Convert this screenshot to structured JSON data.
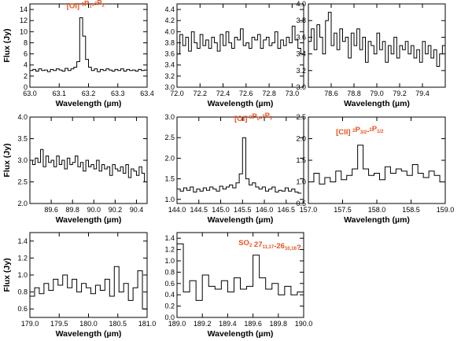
{
  "figure": {
    "common_xlabel": "Wavelength (µm)",
    "common_ylabel": "Flux (Jy)"
  },
  "chart_data": [
    {
      "type": "line",
      "step": true,
      "xlim": [
        63.0,
        63.4
      ],
      "ylim": [
        0,
        15
      ],
      "xticks": [
        63.0,
        63.1,
        63.2,
        63.3,
        63.4
      ],
      "xtick_labels": [
        "63.0",
        "63.1",
        "63.2",
        "63.3",
        "63.4"
      ],
      "yticks": [
        0,
        2,
        4,
        6,
        8,
        10,
        12,
        14
      ],
      "ytick_labels": [
        "0",
        "2",
        "4",
        "6",
        "8",
        "10",
        "12",
        "14"
      ],
      "xlabel": "Wavelength (µm)",
      "ylabel": "Flux (Jy)",
      "annotation": {
        "main": "[OI] ",
        "parts": [
          [
            "3",
            "sup"
          ],
          [
            "P",
            ""
          ],
          [
            "1",
            "sub"
          ],
          [
            "-",
            ""
          ],
          [
            "3",
            "sup"
          ],
          [
            "P",
            ""
          ],
          [
            "2",
            "sub"
          ]
        ],
        "anchor": "x",
        "x": 63.19,
        "y": 14.2
      },
      "x": [
        63.0,
        63.01,
        63.02,
        63.03,
        63.04,
        63.05,
        63.06,
        63.07,
        63.08,
        63.09,
        63.1,
        63.11,
        63.12,
        63.13,
        63.14,
        63.15,
        63.16,
        63.17,
        63.18,
        63.19,
        63.2,
        63.21,
        63.22,
        63.23,
        63.24,
        63.25,
        63.26,
        63.27,
        63.28,
        63.29,
        63.3,
        63.31,
        63.32,
        63.33,
        63.34,
        63.35,
        63.36,
        63.37,
        63.38,
        63.39,
        63.4
      ],
      "y": [
        3.0,
        3.2,
        2.9,
        3.3,
        3.0,
        3.1,
        2.8,
        3.2,
        3.0,
        3.3,
        3.1,
        2.9,
        3.4,
        3.0,
        3.3,
        3.6,
        4.6,
        12.5,
        9.2,
        5.0,
        3.6,
        3.0,
        3.3,
        2.8,
        3.2,
        3.0,
        3.3,
        3.1,
        2.9,
        3.2,
        3.0,
        3.3,
        2.9,
        3.2,
        3.0,
        3.1,
        2.9,
        3.2,
        3.0,
        3.1,
        3.0
      ]
    },
    {
      "type": "line",
      "step": true,
      "xlim": [
        72.0,
        73.1
      ],
      "ylim": [
        3.0,
        4.5
      ],
      "xticks": [
        72.0,
        72.2,
        72.4,
        72.6,
        72.8,
        73.0
      ],
      "xtick_labels": [
        "72.0",
        "72.2",
        "72.4",
        "72.6",
        "72.8",
        "73.0"
      ],
      "yticks": [
        3.0,
        3.2,
        3.4,
        3.6,
        3.8,
        4.0,
        4.2,
        4.4
      ],
      "ytick_labels": [
        "3.0",
        "3.2",
        "3.4",
        "3.6",
        "3.8",
        "4.0",
        "4.2",
        "4.4"
      ],
      "xlabel": "Wavelength (µm)",
      "ylabel": "",
      "x": [
        72.0,
        72.025,
        72.05,
        72.075,
        72.1,
        72.125,
        72.15,
        72.175,
        72.2,
        72.225,
        72.25,
        72.275,
        72.3,
        72.325,
        72.35,
        72.375,
        72.4,
        72.425,
        72.45,
        72.475,
        72.5,
        72.525,
        72.55,
        72.575,
        72.6,
        72.625,
        72.65,
        72.675,
        72.7,
        72.725,
        72.75,
        72.775,
        72.8,
        72.825,
        72.85,
        72.875,
        72.9,
        72.925,
        72.95,
        72.975,
        73.0,
        73.025,
        73.05,
        73.075
      ],
      "y": [
        3.6,
        3.95,
        3.75,
        3.9,
        3.65,
        4.0,
        3.8,
        3.7,
        3.95,
        3.75,
        3.85,
        3.7,
        3.9,
        3.8,
        3.65,
        3.95,
        3.75,
        4.0,
        3.8,
        3.7,
        3.9,
        3.85,
        4.05,
        3.75,
        3.8,
        3.7,
        3.9,
        3.85,
        3.95,
        3.7,
        3.85,
        3.9,
        3.75,
        3.8,
        4.0,
        3.7,
        3.85,
        3.75,
        3.9,
        3.8,
        4.1,
        3.85,
        3.7,
        3.6
      ]
    },
    {
      "type": "line",
      "step": true,
      "xlim": [
        78.4,
        79.6
      ],
      "ylim": [
        3.0,
        4.0
      ],
      "xticks": [
        78.6,
        78.8,
        79.0,
        79.2,
        79.4
      ],
      "xtick_labels": [
        "78.6",
        "78.8",
        "79.0",
        "79.2",
        "79.4"
      ],
      "yticks": [
        3.0,
        3.2,
        3.4,
        3.6,
        3.8,
        4.0
      ],
      "ytick_labels": [
        "3.0",
        "3.2",
        "3.4",
        "3.6",
        "3.8",
        "4.0"
      ],
      "xlabel": "Wavelength (µm)",
      "ylabel": "",
      "x": [
        78.4,
        78.425,
        78.45,
        78.475,
        78.5,
        78.525,
        78.55,
        78.575,
        78.6,
        78.625,
        78.65,
        78.675,
        78.7,
        78.725,
        78.75,
        78.775,
        78.8,
        78.825,
        78.85,
        78.875,
        78.9,
        78.925,
        78.95,
        78.975,
        79.0,
        79.025,
        79.05,
        79.075,
        79.1,
        79.125,
        79.15,
        79.175,
        79.2,
        79.225,
        79.25,
        79.275,
        79.3,
        79.325,
        79.35,
        79.375,
        79.4,
        79.425,
        79.45,
        79.475,
        79.5,
        79.525,
        79.55,
        79.575
      ],
      "y": [
        3.55,
        3.7,
        3.45,
        3.75,
        3.6,
        3.4,
        3.8,
        3.9,
        3.5,
        3.65,
        3.45,
        3.7,
        3.55,
        3.6,
        3.35,
        3.65,
        3.5,
        3.7,
        3.45,
        3.6,
        3.3,
        3.55,
        3.5,
        3.4,
        3.65,
        3.45,
        3.55,
        3.3,
        3.5,
        3.4,
        3.6,
        3.35,
        3.5,
        3.45,
        3.55,
        3.4,
        3.5,
        3.35,
        3.45,
        3.3,
        3.55,
        3.4,
        3.5,
        3.35,
        3.45,
        3.25,
        3.4,
        3.5
      ]
    },
    {
      "type": "line",
      "step": true,
      "xlim": [
        89.4,
        90.5
      ],
      "ylim": [
        2.0,
        4.0
      ],
      "xticks": [
        89.6,
        89.8,
        90.0,
        90.2,
        90.4
      ],
      "xtick_labels": [
        "89.6",
        "89.8",
        "90.0",
        "90.2",
        "90.4"
      ],
      "yticks": [
        2.0,
        2.5,
        3.0,
        3.5,
        4.0
      ],
      "ytick_labels": [
        "2.0",
        "2.5",
        "3.0",
        "3.5",
        "4.0"
      ],
      "xlabel": "Wavelength (µm)",
      "ylabel": "Flux (Jy)",
      "x": [
        89.4,
        89.425,
        89.45,
        89.475,
        89.5,
        89.525,
        89.55,
        89.575,
        89.6,
        89.625,
        89.65,
        89.675,
        89.7,
        89.725,
        89.75,
        89.775,
        89.8,
        89.825,
        89.85,
        89.875,
        89.9,
        89.925,
        89.95,
        89.975,
        90.0,
        90.025,
        90.05,
        90.075,
        90.1,
        90.125,
        90.15,
        90.175,
        90.2,
        90.225,
        90.25,
        90.275,
        90.3,
        90.325,
        90.35,
        90.375,
        90.4,
        90.425,
        90.45,
        90.475
      ],
      "y": [
        3.0,
        2.9,
        3.05,
        2.95,
        3.25,
        2.85,
        3.1,
        2.95,
        3.0,
        2.85,
        3.1,
        2.9,
        3.0,
        2.8,
        3.05,
        2.9,
        2.95,
        3.1,
        2.85,
        2.95,
        2.75,
        3.0,
        2.85,
        2.9,
        2.8,
        3.0,
        2.75,
        2.9,
        2.8,
        2.85,
        2.65,
        2.9,
        2.8,
        2.75,
        2.85,
        2.7,
        2.9,
        2.6,
        2.8,
        2.75,
        2.65,
        2.85,
        2.7,
        2.5
      ]
    },
    {
      "type": "line",
      "step": true,
      "xlim": [
        144.0,
        146.9
      ],
      "ylim": [
        0.9,
        3.0
      ],
      "xticks": [
        144.0,
        144.5,
        145.0,
        145.5,
        146.0,
        146.5
      ],
      "xtick_labels": [
        "144.0",
        "144.5",
        "145.0",
        "145.5",
        "146.0",
        "146.5"
      ],
      "yticks": [
        1.0,
        1.5,
        2.0,
        2.5,
        3.0
      ],
      "ytick_labels": [
        "1.0",
        "1.5",
        "2.0",
        "2.5",
        "3.0"
      ],
      "xlabel": "Wavelength (µm)",
      "ylabel": "",
      "annotation": {
        "main": "[OI] ",
        "parts": [
          [
            "3",
            "sup"
          ],
          [
            "P",
            ""
          ],
          [
            "0",
            "sub"
          ],
          [
            "-",
            ""
          ],
          [
            "3",
            "sup"
          ],
          [
            "P",
            ""
          ],
          [
            "1",
            "sub"
          ]
        ],
        "anchor": "x",
        "x": 145.75,
        "y": 2.9
      },
      "x": [
        144.0,
        144.075,
        144.15,
        144.225,
        144.3,
        144.375,
        144.45,
        144.525,
        144.6,
        144.675,
        144.75,
        144.825,
        144.9,
        144.975,
        145.05,
        145.125,
        145.2,
        145.275,
        145.35,
        145.425,
        145.5,
        145.575,
        145.65,
        145.725,
        145.8,
        145.875,
        145.95,
        146.025,
        146.1,
        146.175,
        146.25,
        146.325,
        146.4,
        146.475,
        146.55,
        146.625,
        146.7,
        146.775
      ],
      "y": [
        1.25,
        1.2,
        1.28,
        1.22,
        1.3,
        1.18,
        1.25,
        1.2,
        1.28,
        1.22,
        1.3,
        1.25,
        1.2,
        1.32,
        1.25,
        1.3,
        1.35,
        1.28,
        1.4,
        1.62,
        2.5,
        1.5,
        1.35,
        1.4,
        1.3,
        1.25,
        1.3,
        1.2,
        1.25,
        1.3,
        1.18,
        1.22,
        1.2,
        1.28,
        1.2,
        1.25,
        1.18,
        1.15
      ]
    },
    {
      "type": "line",
      "step": true,
      "xlim": [
        157.0,
        159.0
      ],
      "ylim": [
        0.5,
        2.5
      ],
      "xticks": [
        157.0,
        157.5,
        158.0,
        158.5,
        159.0
      ],
      "xtick_labels": [
        "157.0",
        "157.5",
        "158.0",
        "158.5",
        "159.0"
      ],
      "yticks": [
        0.5,
        1.0,
        1.5,
        2.0,
        2.5
      ],
      "ytick_labels": [
        "0.5",
        "1.0",
        "1.5",
        "2.0",
        "2.5"
      ],
      "xlabel": "Wavelength (µm)",
      "ylabel": "",
      "annotation": {
        "main": "[CII] ",
        "parts": [
          [
            "2",
            "sup"
          ],
          [
            "P",
            ""
          ],
          [
            "3/2",
            "sub"
          ],
          [
            "-",
            ""
          ],
          [
            "2",
            "sup"
          ],
          [
            "P",
            ""
          ],
          [
            "1/2",
            "sub"
          ]
        ],
        "anchor": "x",
        "x": 157.75,
        "y": 2.1
      },
      "x": [
        157.0,
        157.08,
        157.16,
        157.24,
        157.32,
        157.4,
        157.48,
        157.56,
        157.64,
        157.72,
        157.8,
        157.88,
        157.96,
        158.04,
        158.12,
        158.2,
        158.28,
        158.36,
        158.44,
        158.52,
        158.6,
        158.68,
        158.76,
        158.84,
        158.92
      ],
      "y": [
        1.0,
        1.2,
        0.95,
        1.1,
        1.0,
        1.25,
        1.05,
        1.15,
        1.3,
        1.85,
        1.3,
        1.15,
        1.2,
        1.05,
        1.35,
        1.2,
        1.3,
        1.25,
        1.15,
        1.4,
        1.2,
        1.1,
        1.25,
        1.15,
        1.0
      ]
    },
    {
      "type": "line",
      "step": true,
      "xlim": [
        179.0,
        181.0
      ],
      "ylim": [
        0.5,
        1.5
      ],
      "xticks": [
        179.0,
        179.5,
        180.0,
        180.5,
        181.0
      ],
      "xtick_labels": [
        "179.0",
        "179.5",
        "180.0",
        "180.5",
        "181.0"
      ],
      "yticks": [
        0.6,
        0.8,
        1.0,
        1.2,
        1.4
      ],
      "ytick_labels": [
        "0.6",
        "0.8",
        "1.0",
        "1.2",
        "1.4"
      ],
      "xlabel": "Wavelength (µm)",
      "ylabel": "Flux (Jy)",
      "x": [
        179.0,
        179.08,
        179.16,
        179.24,
        179.32,
        179.4,
        179.48,
        179.56,
        179.64,
        179.72,
        179.8,
        179.88,
        179.96,
        180.04,
        180.12,
        180.2,
        180.28,
        180.36,
        180.44,
        180.52,
        180.6,
        180.68,
        180.76,
        180.84,
        180.92
      ],
      "y": [
        0.75,
        0.85,
        0.78,
        0.9,
        0.82,
        0.95,
        0.88,
        1.0,
        0.85,
        0.95,
        0.8,
        0.9,
        0.85,
        0.78,
        0.88,
        0.82,
        0.95,
        0.75,
        1.1,
        0.8,
        0.9,
        0.7,
        0.85,
        1.05,
        0.6
      ]
    },
    {
      "type": "line",
      "step": true,
      "xlim": [
        189.0,
        190.0
      ],
      "ylim": [
        0.0,
        1.5
      ],
      "xticks": [
        189.0,
        189.2,
        189.4,
        189.6,
        189.8,
        190.0
      ],
      "xtick_labels": [
        "189.0",
        "189.2",
        "189.4",
        "189.6",
        "189.8",
        "190.0"
      ],
      "yticks": [
        0.0,
        0.2,
        0.4,
        0.6,
        0.8,
        1.0,
        1.2,
        1.4
      ],
      "ytick_labels": [
        "0.0",
        "0.2",
        "0.4",
        "0.6",
        "0.8",
        "1.0",
        "1.2",
        "1.4"
      ],
      "xlabel": "Wavelength (µm)",
      "ylabel": "",
      "annotation": {
        "main": "SO",
        "parts": [
          [
            "2",
            "sub"
          ],
          [
            " 27",
            ""
          ],
          [
            "11,17",
            "sub"
          ],
          [
            "-26",
            ""
          ],
          [
            "10,16",
            "sub"
          ],
          [
            "?",
            ""
          ]
        ],
        "anchor": "end",
        "x": 189.98,
        "y": 1.28
      },
      "x": [
        189.0,
        189.05,
        189.1,
        189.15,
        189.2,
        189.25,
        189.3,
        189.35,
        189.4,
        189.45,
        189.5,
        189.55,
        189.6,
        189.65,
        189.7,
        189.75,
        189.8,
        189.85,
        189.9,
        189.95
      ],
      "y": [
        1.3,
        0.45,
        0.65,
        0.3,
        0.75,
        0.55,
        0.5,
        0.65,
        0.45,
        0.7,
        0.5,
        0.55,
        1.1,
        0.7,
        0.5,
        0.6,
        0.4,
        0.55,
        0.4,
        0.45
      ]
    }
  ]
}
